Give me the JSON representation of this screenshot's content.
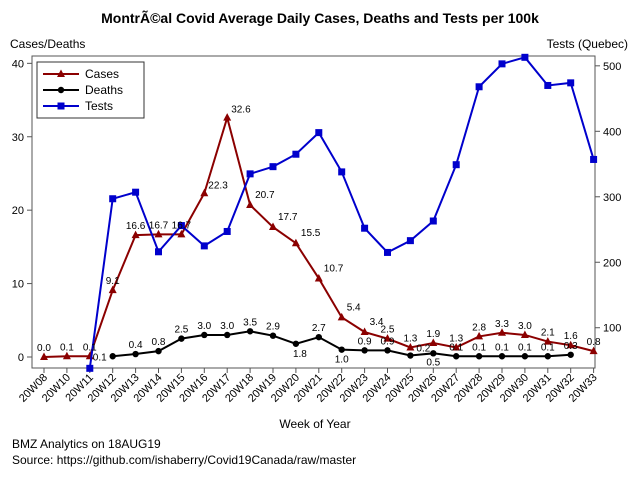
{
  "chart_data": {
    "type": "line",
    "title": "MontrÃ©al Covid Average Daily Cases, Deaths and Tests per 100k",
    "ylabel_left": "Cases/Deaths",
    "ylabel_right": "Tests (Quebec)",
    "xlabel": "Week of Year",
    "categories": [
      "20W08",
      "20W10",
      "20W11",
      "20W12",
      "20W13",
      "20W14",
      "20W15",
      "20W16",
      "20W17",
      "20W18",
      "20W19",
      "20W20",
      "20W21",
      "20W22",
      "20W23",
      "20W24",
      "20W25",
      "20W26",
      "20W27",
      "20W28",
      "20W29",
      "20W30",
      "20W31",
      "20W32",
      "20W33"
    ],
    "ylim_left": [
      -1.5,
      41
    ],
    "ylim_right": [
      38.5,
      515
    ],
    "yticks_left": [
      0,
      10,
      20,
      30,
      40
    ],
    "yticks_right": [
      100,
      200,
      300,
      400,
      500
    ],
    "legend_position": "top-left",
    "series": [
      {
        "name": "Cases",
        "axis": "left",
        "color": "#8b0000",
        "marker": "triangle",
        "values": [
          0.0,
          0.1,
          0.1,
          9.1,
          16.6,
          16.7,
          16.7,
          22.3,
          32.6,
          20.7,
          17.7,
          15.5,
          10.7,
          5.4,
          3.4,
          2.5,
          1.3,
          1.9,
          1.3,
          2.8,
          3.3,
          3.0,
          2.1,
          1.6,
          0.8
        ],
        "labels": [
          "0.0",
          "0.1",
          "0.1",
          "9.1",
          "16.6",
          "16.7",
          "16.7",
          "22.3",
          "32.6",
          "20.7",
          "17.7",
          "15.5",
          "10.7",
          "5.4",
          "3.4",
          "2.5",
          "1.3",
          "1.9",
          "1.3",
          "2.8",
          "3.3",
          "3.0",
          "2.1",
          "1.6",
          "0.8"
        ]
      },
      {
        "name": "Deaths",
        "axis": "left",
        "color": "#000000",
        "marker": "circle",
        "values": [
          null,
          null,
          null,
          0.1,
          0.4,
          0.8,
          2.5,
          3.0,
          3.0,
          3.5,
          2.9,
          1.8,
          2.7,
          1.0,
          0.9,
          0.9,
          0.2,
          0.5,
          0.1,
          0.1,
          0.1,
          0.1,
          0.1,
          0.3,
          null
        ],
        "labels": [
          null,
          null,
          null,
          "0.1",
          "0.4",
          "0.8",
          "2.5",
          "3.0",
          "3.0",
          "3.5",
          "2.9",
          "1.8",
          "2.7",
          "1.0",
          "0.9",
          "0.9",
          "0.2",
          "0.5",
          "0.1",
          "0.1",
          "0.1",
          "0.1",
          "0.1",
          "0.3",
          null
        ]
      },
      {
        "name": "Tests",
        "axis": "right",
        "color": "#0000cc",
        "marker": "square",
        "values": [
          null,
          null,
          38,
          297,
          307,
          216,
          256,
          225,
          247,
          335,
          346,
          365,
          398,
          338,
          252,
          215,
          233,
          263,
          349,
          468,
          503,
          513,
          470,
          474,
          357
        ]
      }
    ]
  },
  "footer": {
    "line1": "BMZ Analytics on 18AUG19",
    "line2": "Source: https://github.com/ishaberry/Covid19Canada/raw/master"
  }
}
